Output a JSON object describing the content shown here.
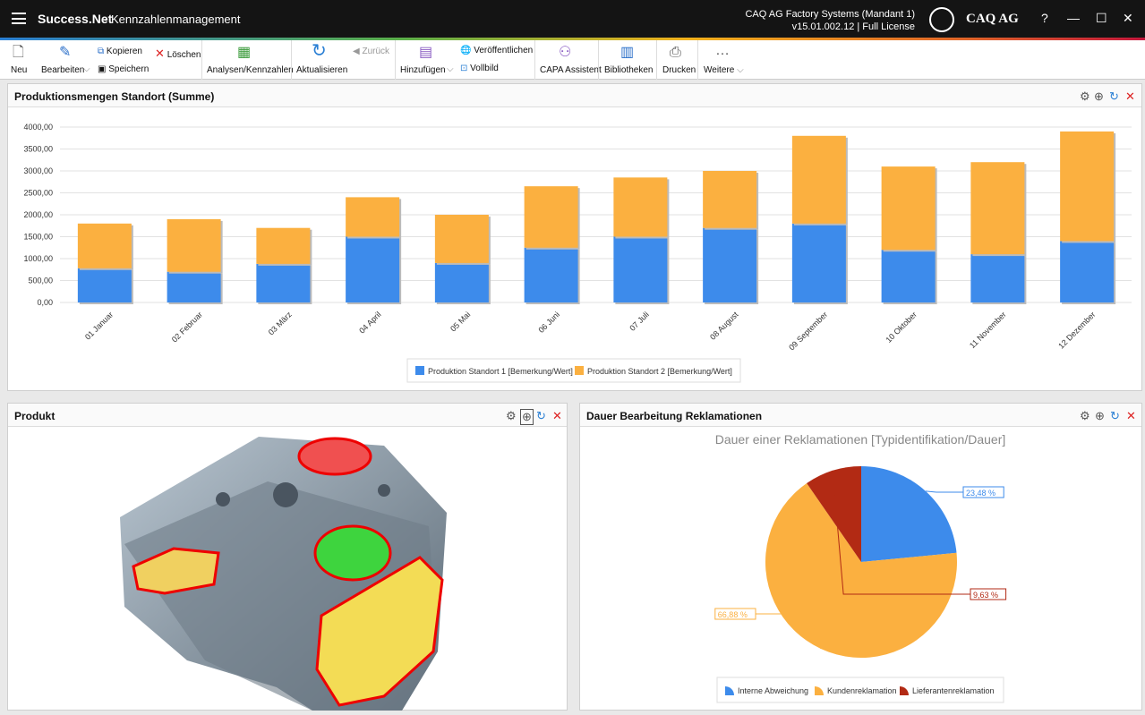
{
  "titlebar": {
    "app": "Success.Net",
    "subtitle": "- Kennzahlenmanagement",
    "instance": "CAQ AG Factory Systems (Mandant 1)",
    "version": "v15.01.002.12 | Full License",
    "logo": "CAQ AG",
    "help": "?",
    "minimize": "—",
    "maximize": "☐",
    "close": "✕"
  },
  "toolbar": {
    "neu": "Neu",
    "bearbeiten": "Bearbeiten",
    "kopieren": "Kopieren",
    "loeschen": "Löschen",
    "speichern": "Speichern",
    "analysen": "Analysen/Kennzahlen",
    "aktualisieren": "Aktualisieren",
    "zurueck": "Zurück",
    "hinzufuegen": "Hinzufügen",
    "veroeffentlichen": "Veröffentlichen",
    "vollbild": "Vollbild",
    "capa": "CAPA Assistent",
    "bibliotheken": "Bibliotheken",
    "drucken": "Drucken",
    "weitere": "Weitere"
  },
  "panels": {
    "bar": "Produktionsmengen Standort (Summe)",
    "product": "Produkt",
    "pie": "Dauer Bearbeitung Reklamationen"
  },
  "chart_data": [
    {
      "type": "bar",
      "stacked": true,
      "title": "",
      "categories": [
        "01 Januar",
        "02 Februar",
        "03 März",
        "04 April",
        "05 Mai",
        "06 Juni",
        "07 Juli",
        "08 August",
        "09 September",
        "10 Oktober",
        "11 November",
        "12 Dezember"
      ],
      "series": [
        {
          "name": "Produktion Standort 1 [Bemerkung/Wert]",
          "color": "#3d8beb",
          "values": [
            780,
            700,
            880,
            1500,
            900,
            1250,
            1500,
            1700,
            1800,
            1200,
            1100,
            1400
          ]
        },
        {
          "name": "Produktion Standort 2 [Bemerkung/Wert]",
          "color": "#fbb040",
          "values": [
            1020,
            1200,
            820,
            900,
            1100,
            1400,
            1350,
            1300,
            2000,
            1900,
            2100,
            2500
          ]
        }
      ],
      "ylim": [
        0,
        4000
      ],
      "yticks": [
        "0,00",
        "500,00",
        "1000,00",
        "1500,00",
        "2000,00",
        "2500,00",
        "3000,00",
        "3500,00",
        "4000,00"
      ],
      "legend": "bottom"
    },
    {
      "type": "pie",
      "title": "Dauer einer Reklamationen [Typidentifikation/Dauer]",
      "labels": [
        "Interne Abweichung",
        "Kundenreklamation",
        "Lieferantenreklamation"
      ],
      "values": [
        23.48,
        66.88,
        9.63
      ],
      "value_labels": [
        "23,48 %",
        "66,88 %",
        "9,63 %"
      ],
      "colors": [
        "#3d8beb",
        "#fbb040",
        "#b22a14"
      ],
      "legend": "bottom"
    }
  ]
}
